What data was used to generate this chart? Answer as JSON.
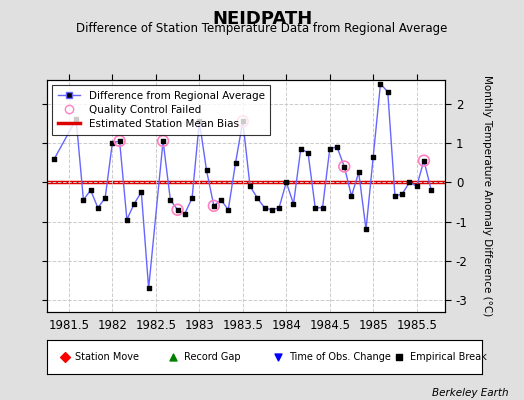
{
  "title": "NEIDPATH",
  "subtitle": "Difference of Station Temperature Data from Regional Average",
  "ylabel": "Monthly Temperature Anomaly Difference (°C)",
  "xlim": [
    1981.25,
    1985.83
  ],
  "ylim": [
    -3.3,
    2.6
  ],
  "yticks": [
    -3,
    -2,
    -1,
    0,
    1,
    2
  ],
  "xticks": [
    1981.5,
    1982,
    1982.5,
    1983,
    1983.5,
    1984,
    1984.5,
    1985,
    1985.5
  ],
  "xtick_labels": [
    "1981.5",
    "1982",
    "1982.5",
    "1983",
    "1983.5",
    "1984",
    "1984.5",
    "1985",
    "1985.5"
  ],
  "mean_bias": 0.0,
  "background_color": "#e0e0e0",
  "plot_bg_color": "#ffffff",
  "berkeley_earth_text": "Berkeley Earth",
  "x_data": [
    1981.333,
    1981.583,
    1981.667,
    1981.75,
    1981.833,
    1981.917,
    1982.0,
    1982.083,
    1982.167,
    1982.25,
    1982.333,
    1982.417,
    1982.583,
    1982.667,
    1982.75,
    1982.833,
    1982.917,
    1983.0,
    1983.083,
    1983.167,
    1983.25,
    1983.333,
    1983.417,
    1983.5,
    1983.583,
    1983.667,
    1983.75,
    1983.833,
    1983.917,
    1984.0,
    1984.083,
    1984.167,
    1984.25,
    1984.333,
    1984.417,
    1984.5,
    1984.583,
    1984.667,
    1984.75,
    1984.833,
    1984.917,
    1985.0,
    1985.083,
    1985.167,
    1985.25,
    1985.333,
    1985.417,
    1985.5,
    1985.583,
    1985.667
  ],
  "y_data": [
    0.6,
    1.6,
    -0.45,
    -0.2,
    -0.65,
    -0.4,
    1.0,
    1.05,
    -0.95,
    -0.55,
    -0.25,
    -2.7,
    1.05,
    -0.45,
    -0.7,
    -0.8,
    -0.4,
    1.55,
    0.3,
    -0.6,
    -0.45,
    -0.7,
    0.5,
    1.55,
    -0.1,
    -0.4,
    -0.65,
    -0.7,
    -0.65,
    0.0,
    -0.55,
    0.85,
    0.75,
    -0.65,
    -0.65,
    0.85,
    0.9,
    0.4,
    -0.35,
    0.25,
    -1.2,
    0.65,
    2.5,
    2.3,
    -0.35,
    -0.3,
    0.0,
    -0.1,
    0.55,
    -0.2
  ],
  "qc_x": [
    1982.083,
    1982.583,
    1982.75,
    1983.167,
    1983.5,
    1984.667,
    1985.583
  ],
  "qc_y": [
    1.05,
    1.05,
    -0.7,
    -0.6,
    1.55,
    0.4,
    0.55
  ],
  "line_color": "#6666ff",
  "marker_color": "#000000",
  "qc_color": "#ff80c0",
  "bias_color": "#dd0000",
  "grid_color": "#cccccc"
}
